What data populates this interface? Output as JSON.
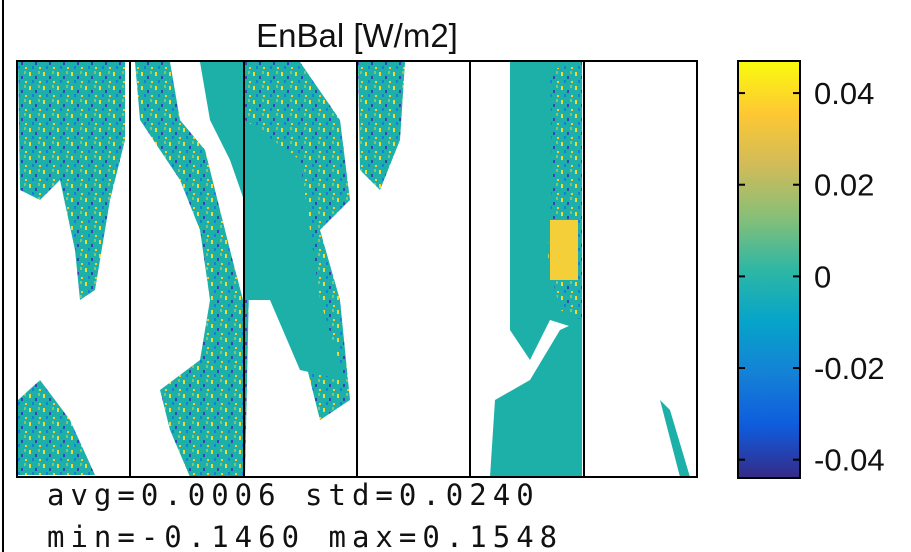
{
  "chart_data": {
    "type": "heatmap",
    "title": "EnBal [W/m2]",
    "clim": [
      -0.044,
      0.047
    ],
    "cticks": [
      0.04,
      0.02,
      0,
      -0.02,
      -0.04
    ],
    "colormap": [
      "#352a87",
      "#0f5cdd",
      "#1481d6",
      "#06a4ca",
      "#2eb7a4",
      "#87bf77",
      "#d1bb59",
      "#fec832",
      "#f9fb0e"
    ],
    "annotations": [
      "avg=0.0006 std=0.0240",
      "min=-0.1460 max=0.1548"
    ]
  }
}
